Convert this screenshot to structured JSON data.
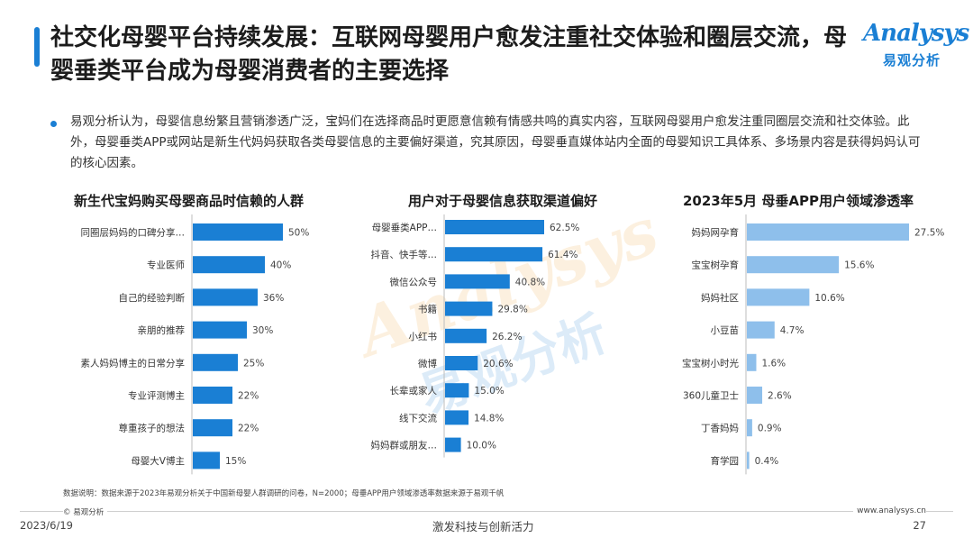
{
  "title": "社交化母婴平台持续发展：互联网母婴用户愈发注重社交体验和圈层交流，母婴垂类平台成为母婴消费者的主要选择",
  "logo": {
    "word": "Analysys",
    "cn": "易观分析"
  },
  "intro": "易观分析认为，母婴信息纷繁且营销渗透广泛，宝妈们在选择商品时更愿意信赖有情感共鸣的真实内容，互联网母婴用户愈发注重同圈层交流和社交体验。此外，母婴垂类APP或网站是新生代妈妈获取各类母婴信息的主要偏好渠道，究其原因，母婴垂直媒体站内全面的母婴知识工具体系、多场景内容是获得妈妈认可的核心因素。",
  "watermark": {
    "word": "Analysys",
    "cn": "易观分析"
  },
  "colors": {
    "dark_bar": "#1a7fd4",
    "light_bar": "#8ebfeb",
    "accent": "#1a7fd4"
  },
  "chart_data": [
    {
      "type": "bar",
      "orientation": "horizontal",
      "title": "新生代宝妈购买母婴商品时信赖的人群",
      "categories": [
        "同圈层妈妈的口碑分享…",
        "专业医师",
        "自己的经验判断",
        "亲朋的推荐",
        "素人妈妈博主的日常分享",
        "专业评测博主",
        "尊重孩子的想法",
        "母婴大V博主"
      ],
      "values": [
        50,
        40,
        36,
        30,
        25,
        22,
        22,
        15
      ],
      "value_labels": [
        "50%",
        "40%",
        "36%",
        "30%",
        "25%",
        "22%",
        "22%",
        "15%"
      ],
      "xlim": [
        0,
        50
      ],
      "color": "#1a7fd4"
    },
    {
      "type": "bar",
      "orientation": "horizontal",
      "title": "用户对于母婴信息获取渠道偏好",
      "categories": [
        "母婴垂类APP…",
        "抖音、快手等…",
        "微信公众号",
        "书籍",
        "小红书",
        "微博",
        "长辈或家人",
        "线下交流",
        "妈妈群或朋友…"
      ],
      "values": [
        62.5,
        61.4,
        40.8,
        29.8,
        26.2,
        20.6,
        15.0,
        14.8,
        10.0
      ],
      "value_labels": [
        "62.5%",
        "61.4%",
        "40.8%",
        "29.8%",
        "26.2%",
        "20.6%",
        "15.0%",
        "14.8%",
        "10.0%"
      ],
      "xlim": [
        0,
        62.5
      ],
      "color": "#1a7fd4"
    },
    {
      "type": "bar",
      "orientation": "horizontal",
      "title": "2023年5月 母垂APP用户领域渗透率",
      "categories": [
        "妈妈网孕育",
        "宝宝树孕育",
        "妈妈社区",
        "小豆苗",
        "宝宝树小时光",
        "360儿童卫士",
        "丁香妈妈",
        "育学园"
      ],
      "values": [
        27.5,
        15.6,
        10.6,
        4.7,
        1.6,
        2.6,
        0.9,
        0.4
      ],
      "value_labels": [
        "27.5%",
        "15.6%",
        "10.6%",
        "4.7%",
        "1.6%",
        "2.6%",
        "0.9%",
        "0.4%"
      ],
      "xlim": [
        0,
        27.5
      ],
      "color": "#8ebfeb"
    }
  ],
  "footnote": "数据说明：数据来源于2023年易观分析关于中国新母婴人群调研的问卷，N=2000；母垂APP用户领域渗透率数据来源于易观千帆",
  "footer": {
    "copyright": "© 易观分析",
    "website": "www.analysys.cn",
    "date": "2023/6/19",
    "slogan": "激发科技与创新活力",
    "page": "27"
  }
}
